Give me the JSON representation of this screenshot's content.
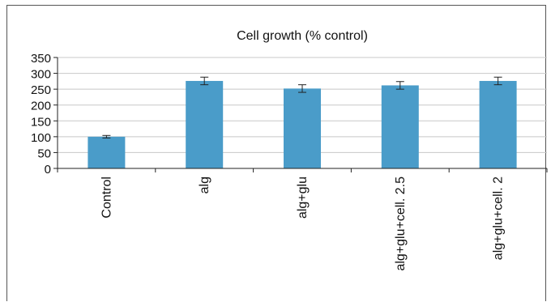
{
  "chart_data": {
    "type": "bar",
    "title": "Cell growth (% control)",
    "categories": [
      "Control",
      "alg",
      "alg+glu",
      "alg+glu+cell. 2.5",
      "alg+glu+cell. 2"
    ],
    "values": [
      100,
      276,
      252,
      262,
      276
    ],
    "errors": [
      4,
      12,
      12,
      12,
      12
    ],
    "ylim": [
      0,
      350
    ],
    "yticks": [
      0,
      50,
      100,
      150,
      200,
      250,
      300,
      350
    ],
    "grid": true,
    "bar_color": "#4a9cc9"
  }
}
